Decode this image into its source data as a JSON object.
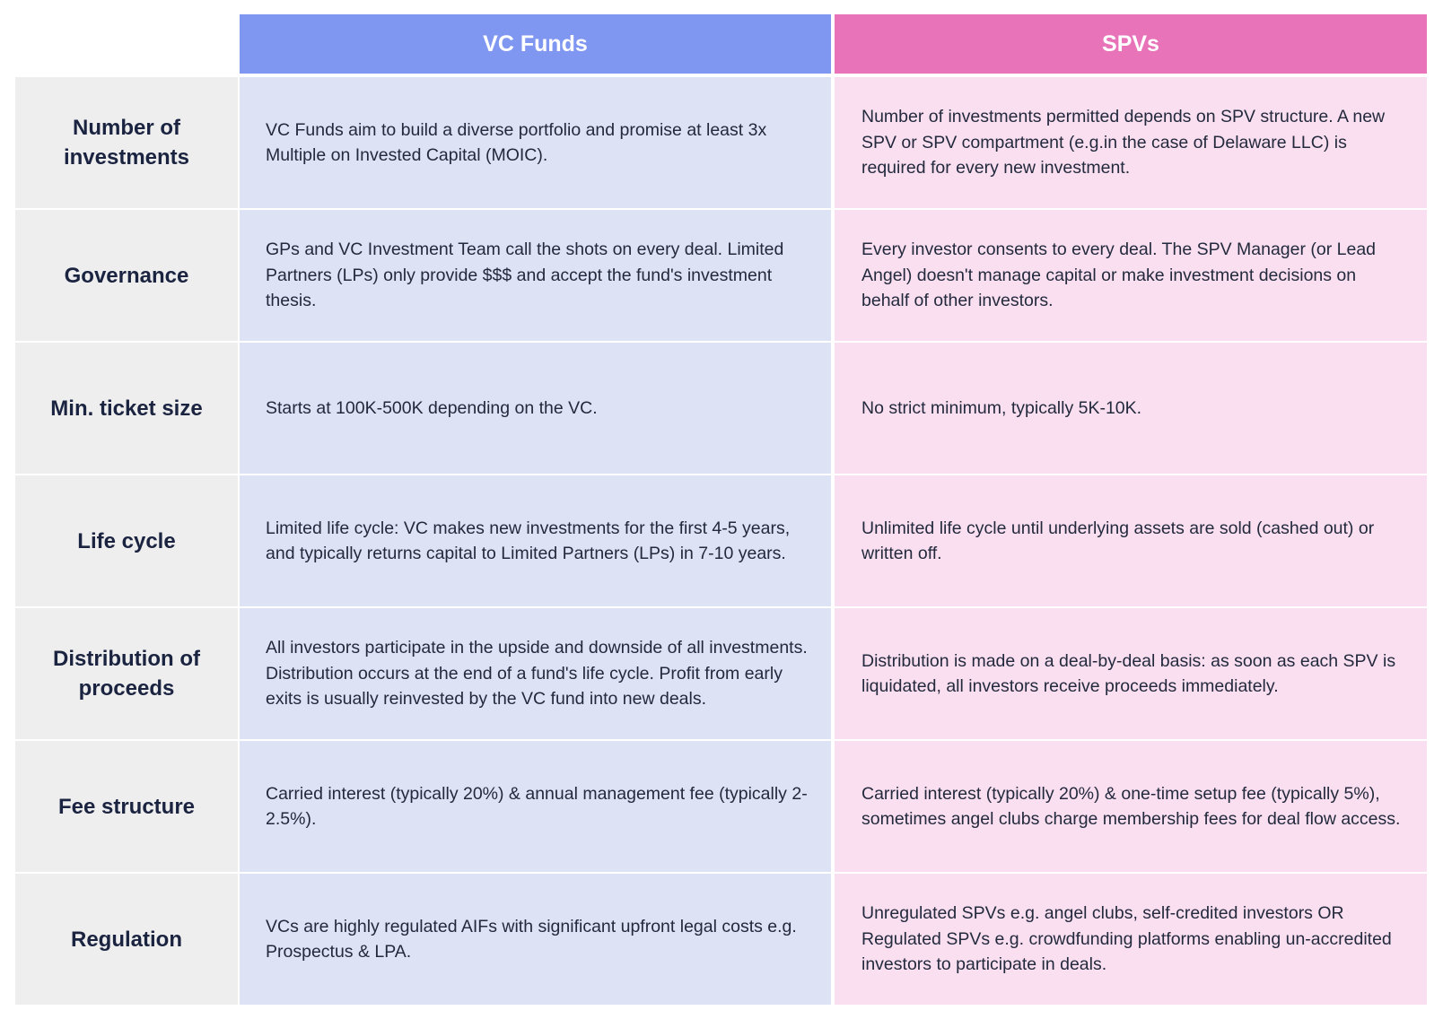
{
  "header": {
    "corner": "",
    "columns": [
      {
        "label": "VC Funds",
        "color": "#8097f2",
        "body_color": "#dde2f5"
      },
      {
        "label": "SPVs",
        "color": "#e873b8",
        "body_color": "#fadff0"
      }
    ]
  },
  "rows": [
    {
      "label": "Number of investments",
      "vc": "VC Funds aim to build a diverse portfolio and promise at least 3x Multiple on Invested Capital (MOIC).",
      "spv": "Number of investments permitted depends on SPV structure. A new SPV or SPV compartment (e.g.in the case of Delaware LLC) is required for every new investment."
    },
    {
      "label": "Governance",
      "vc": "GPs and VC Investment Team call the shots on every deal. Limited Partners (LPs) only provide $$$ and accept the fund's investment thesis.",
      "spv": "Every investor consents to every deal. The SPV Manager (or Lead Angel) doesn't manage capital or make investment decisions on behalf of other investors."
    },
    {
      "label": "Min. ticket size",
      "vc": "Starts at 100K-500K depending on the VC.",
      "spv": "No strict minimum, typically 5K-10K."
    },
    {
      "label": "Life cycle",
      "vc": "Limited life cycle: VC makes new investments for the first 4-5 years, and typically returns capital to Limited Partners (LPs) in 7-10 years.",
      "spv": "Unlimited life cycle until underlying assets are sold (cashed out) or written off."
    },
    {
      "label": "Distribution of proceeds",
      "vc": "All investors participate in the upside and downside of all investments. Distribution occurs at the end of a fund's life cycle. Profit from early exits is usually reinvested by the VC fund into new deals.",
      "spv": "Distribution is made on a deal-by-deal basis: as soon as each SPV is liquidated, all investors receive proceeds immediately."
    },
    {
      "label": "Fee structure",
      "vc": "Carried interest (typically 20%) & annual management fee (typically 2-2.5%).",
      "spv": "Carried interest (typically 20%) & one-time setup fee (typically 5%), sometimes angel clubs charge membership fees for deal flow access."
    },
    {
      "label": "Regulation",
      "vc": "VCs are highly regulated AIFs with significant upfront legal costs e.g. Prospectus & LPA.",
      "spv": "Unregulated SPVs e.g. angel clubs, self-credited investors OR Regulated SPVs e.g. crowdfunding platforms enabling un-accredited investors to participate in deals."
    }
  ]
}
